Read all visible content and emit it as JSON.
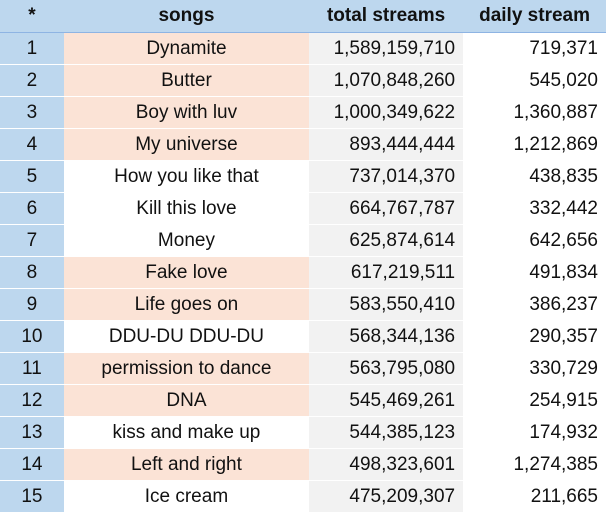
{
  "table": {
    "headers": [
      "*",
      "songs",
      "total streams",
      "daily stream"
    ],
    "rows": [
      {
        "rank": "1",
        "song": "Dynamite",
        "total": "1,589,159,710",
        "daily": "719,371",
        "highlight": true
      },
      {
        "rank": "2",
        "song": "Butter",
        "total": "1,070,848,260",
        "daily": "545,020",
        "highlight": true
      },
      {
        "rank": "3",
        "song": "Boy with luv",
        "total": "1,000,349,622",
        "daily": "1,360,887",
        "highlight": true
      },
      {
        "rank": "4",
        "song": "My universe",
        "total": "893,444,444",
        "daily": "1,212,869",
        "highlight": true
      },
      {
        "rank": "5",
        "song": "How you like that",
        "total": "737,014,370",
        "daily": "438,835",
        "highlight": false
      },
      {
        "rank": "6",
        "song": "Kill this love",
        "total": "664,767,787",
        "daily": "332,442",
        "highlight": false
      },
      {
        "rank": "7",
        "song": "Money",
        "total": "625,874,614",
        "daily": "642,656",
        "highlight": false
      },
      {
        "rank": "8",
        "song": "Fake love",
        "total": "617,219,511",
        "daily": "491,834",
        "highlight": true
      },
      {
        "rank": "9",
        "song": "Life goes on",
        "total": "583,550,410",
        "daily": "386,237",
        "highlight": true
      },
      {
        "rank": "10",
        "song": "DDU-DU DDU-DU",
        "total": "568,344,136",
        "daily": "290,357",
        "highlight": false
      },
      {
        "rank": "11",
        "song": "permission to dance",
        "total": "563,795,080",
        "daily": "330,729",
        "highlight": true
      },
      {
        "rank": "12",
        "song": "DNA",
        "total": "545,469,261",
        "daily": "254,915",
        "highlight": true
      },
      {
        "rank": "13",
        "song": "kiss and make up",
        "total": "544,385,123",
        "daily": "174,932",
        "highlight": false
      },
      {
        "rank": "14",
        "song": "Left and right",
        "total": "498,323,601",
        "daily": "1,274,385",
        "highlight": true
      },
      {
        "rank": "15",
        "song": "Ice cream",
        "total": "475,209,307",
        "daily": "211,665",
        "highlight": false
      }
    ]
  }
}
